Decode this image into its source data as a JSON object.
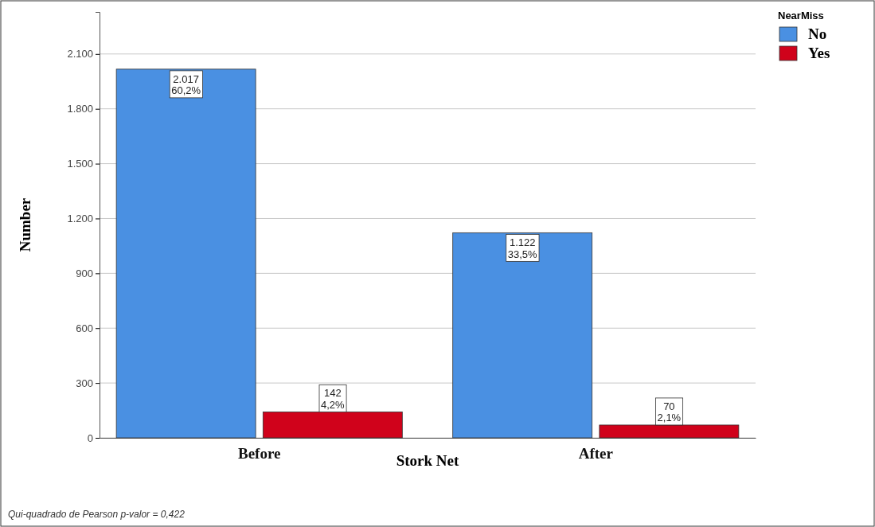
{
  "chart_data": {
    "type": "bar",
    "xlabel": "Stork Net",
    "ylabel": "Number",
    "legend_title": "NearMiss",
    "categories": [
      "Before",
      "After"
    ],
    "series": [
      {
        "name": "No",
        "color": "#4a90e2",
        "values": [
          2017,
          1122
        ],
        "value_labels": [
          "2.017\n60,2%",
          "1.122\n33,5%"
        ]
      },
      {
        "name": "Yes",
        "color": "#d0021b",
        "values": [
          142,
          70
        ],
        "value_labels": [
          "142\n4,2%",
          "70\n2,1%"
        ]
      }
    ],
    "ylim": [
      0,
      2330
    ],
    "yticks": [
      0,
      300,
      600,
      900,
      {
        "value": 1200,
        "label": "1.200"
      },
      {
        "value": 1500,
        "label": "1.500"
      },
      {
        "value": 1800,
        "label": "1.800"
      },
      {
        "value": 2100,
        "label": "2.100"
      }
    ],
    "grid": "y",
    "legend": "top right",
    "annotations": [
      "Qui-quadrado de Pearson  p-valor = 0,422"
    ]
  }
}
